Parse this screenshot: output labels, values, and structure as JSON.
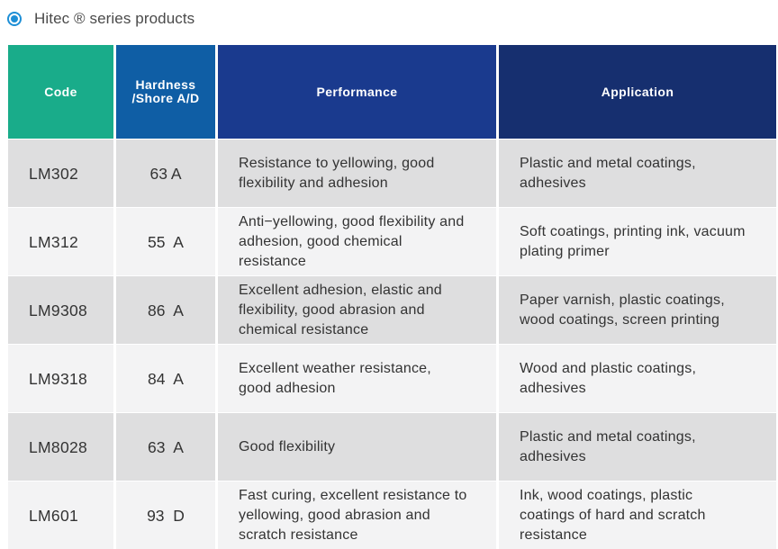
{
  "title": "Hitec ® series products",
  "headers": {
    "code": "Code",
    "hardness": "Hardness\n/Shore A/D",
    "performance": "Performance",
    "application": "Application"
  },
  "colors": {
    "code_header": "#19ac8a",
    "hardness_header": "#0f5ea5",
    "performance_header": "#1a3a8e",
    "application_header": "#162f6f",
    "radio": "#1e8fd6"
  },
  "rows": [
    {
      "code": "LM302",
      "hardness": "63 A",
      "performance": "Resistance to yellowing, good\nflexibility and adhesion",
      "application": "Plastic and metal coatings,\nadhesives"
    },
    {
      "code": "LM312",
      "hardness": "55  A",
      "performance": "Anti−yellowing, good flexibility and\nadhesion, good chemical\nresistance",
      "application": "Soft coatings, printing ink, vacuum\nplating primer"
    },
    {
      "code": "LM9308",
      "hardness": "86  A",
      "performance": "Excellent adhesion, elastic and\nflexibility, good abrasion and\nchemical resistance",
      "application": "Paper varnish, plastic coatings,\nwood coatings, screen printing"
    },
    {
      "code": "LM9318",
      "hardness": "84  A",
      "performance": "Excellent weather resistance,\ngood adhesion",
      "application": "Wood and plastic coatings,\nadhesives"
    },
    {
      "code": "LM8028",
      "hardness": "63  A",
      "performance": "Good flexibility",
      "application": "Plastic and metal coatings,\nadhesives"
    },
    {
      "code": "LM601",
      "hardness": "93  D",
      "performance": "Fast curing, excellent resistance to\nyellowing,    good abrasion and\nscratch resistance",
      "application": "Ink, wood coatings, plastic\ncoatings of hard and scratch\nresistance"
    }
  ]
}
